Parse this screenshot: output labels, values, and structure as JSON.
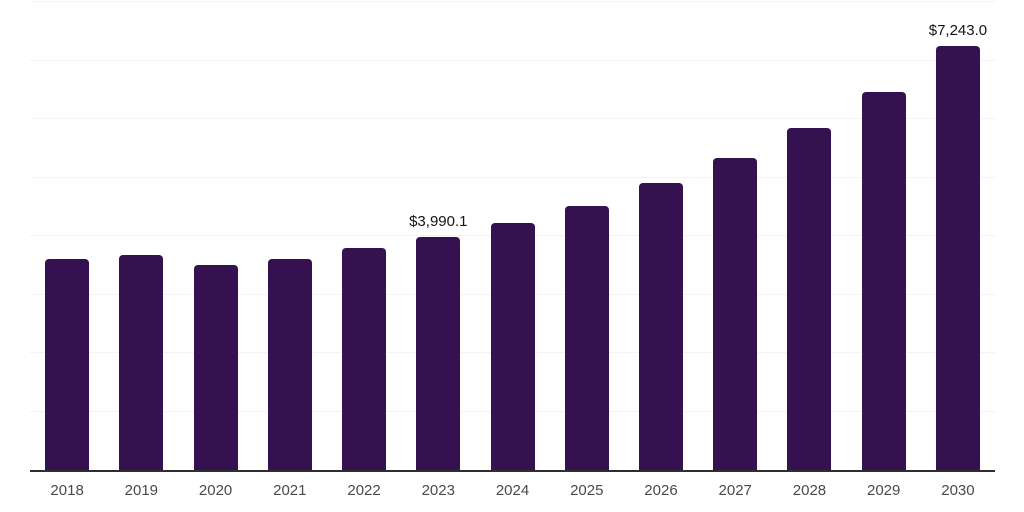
{
  "chart_data": {
    "type": "bar",
    "title": "",
    "xlabel": "",
    "ylabel": "",
    "categories": [
      "2018",
      "2019",
      "2020",
      "2021",
      "2022",
      "2023",
      "2024",
      "2025",
      "2026",
      "2027",
      "2028",
      "2029",
      "2030"
    ],
    "values": [
      3600,
      3670,
      3500,
      3610,
      3800,
      3990.1,
      4220,
      4510,
      4910,
      5330,
      5850,
      6470,
      7243.0
    ],
    "data_labels": [
      "",
      "",
      "",
      "",
      "",
      "$3,990.1",
      "",
      "",
      "",
      "",
      "",
      "",
      "$7,243.0"
    ],
    "ylim": [
      0,
      8000
    ],
    "gridline_step": 1000,
    "grid": true,
    "legend_position": "none"
  },
  "colors": {
    "bar": "#361150",
    "baseline": "#2e2e2e",
    "gridline": "#f3f3f5",
    "tick_label": "#4a4a4a",
    "data_label": "#141414",
    "background": "#ffffff"
  }
}
